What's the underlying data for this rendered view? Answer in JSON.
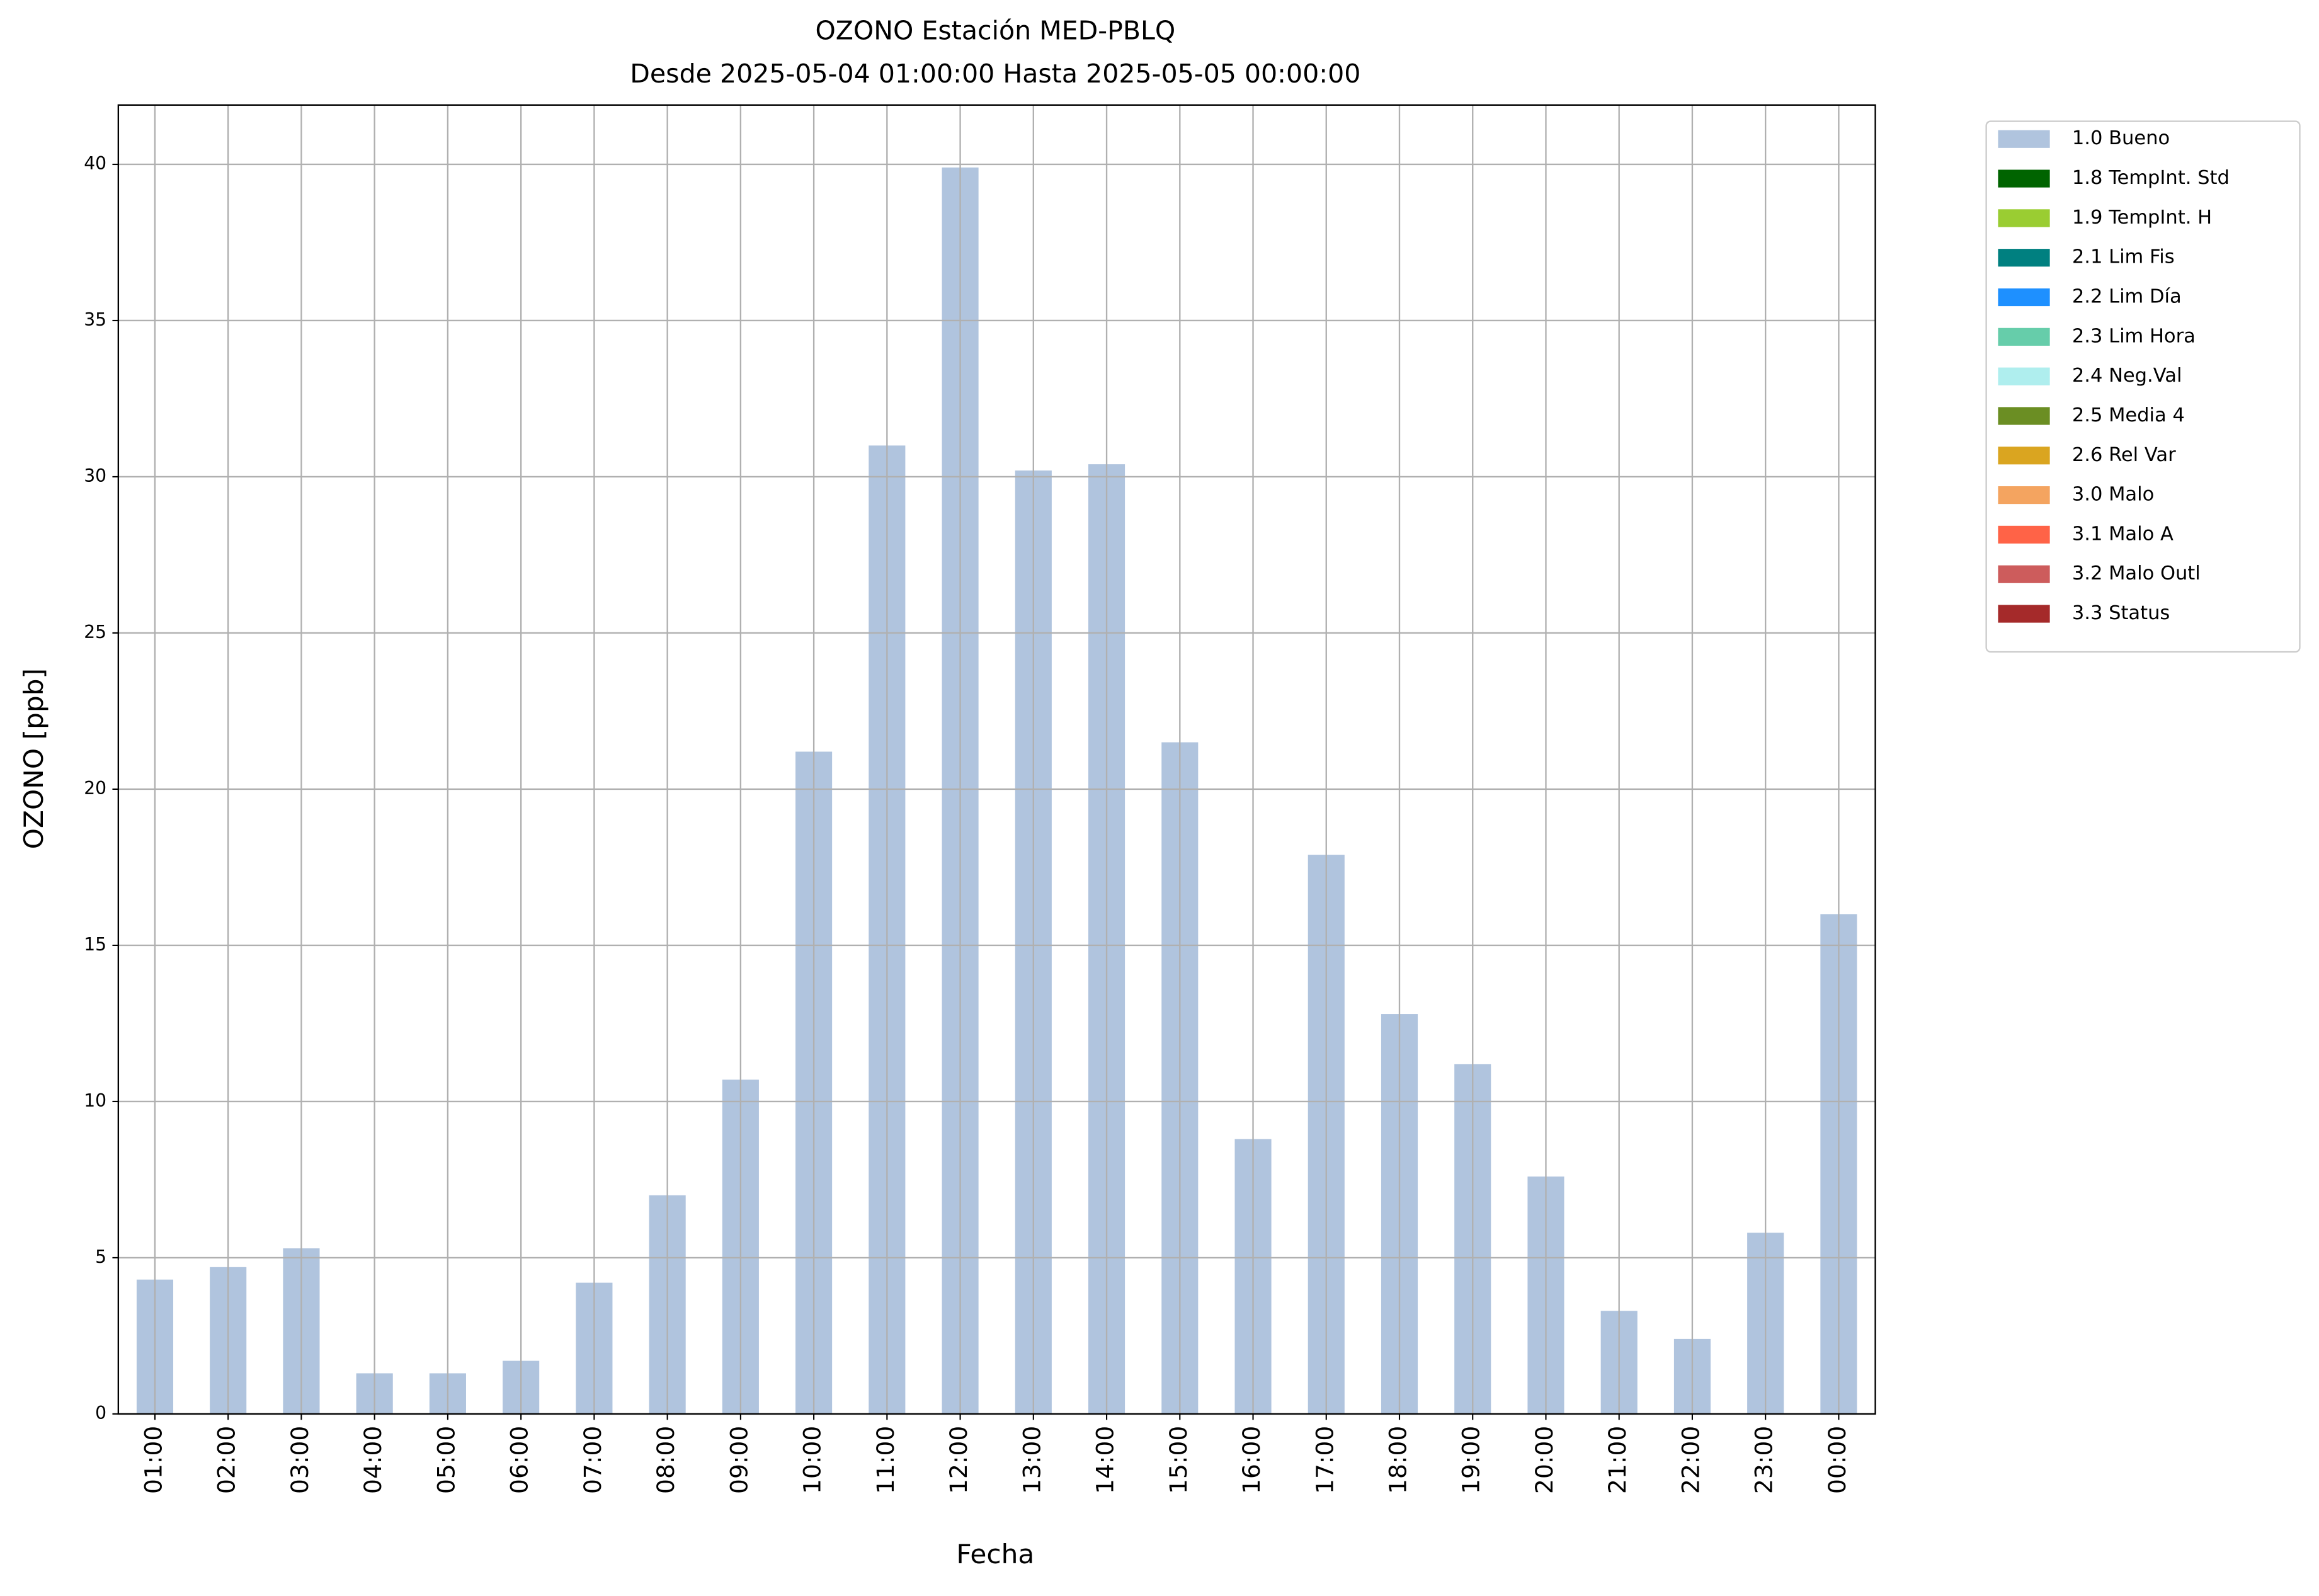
{
  "chart_data": {
    "type": "bar",
    "title": "OZONO Estación MED-PBLQ",
    "subtitle": "Desde 2025-05-04 01:00:00 Hasta 2025-05-05 00:00:00",
    "x_label": "Fecha",
    "y_label": "OZONO [ppb]",
    "categories": [
      "01:00",
      "02:00",
      "03:00",
      "04:00",
      "05:00",
      "06:00",
      "07:00",
      "08:00",
      "09:00",
      "10:00",
      "11:00",
      "12:00",
      "13:00",
      "14:00",
      "15:00",
      "16:00",
      "17:00",
      "18:00",
      "19:00",
      "20:00",
      "21:00",
      "22:00",
      "23:00",
      "00:00"
    ],
    "series": [
      {
        "name": "1.0 Bueno",
        "color": "#b0c4de",
        "values": [
          4.3,
          4.7,
          5.3,
          1.3,
          1.3,
          1.7,
          4.2,
          7.0,
          10.7,
          21.2,
          31.0,
          39.9,
          30.2,
          30.4,
          21.5,
          8.8,
          17.9,
          12.8,
          11.2,
          7.6,
          3.3,
          2.4,
          5.8,
          16.0
        ]
      }
    ],
    "legend_only": [
      {
        "name": "1.8 TempInt. Std",
        "color": "#006400"
      },
      {
        "name": "1.9 TempInt. H",
        "color": "#9acd32"
      },
      {
        "name": "2.1 Lim Fis",
        "color": "#008080"
      },
      {
        "name": "2.2 Lim Día",
        "color": "#1e90ff"
      },
      {
        "name": "2.3 Lim Hora",
        "color": "#66cdaa"
      },
      {
        "name": "2.4 Neg.Val",
        "color": "#afeeee"
      },
      {
        "name": "2.5 Media 4",
        "color": "#6b8e23"
      },
      {
        "name": "2.6 Rel Var",
        "color": "#daa520"
      },
      {
        "name": "3.0 Malo",
        "color": "#f4a460"
      },
      {
        "name": "3.1 Malo A",
        "color": "#ff6347"
      },
      {
        "name": "3.2 Malo Outl",
        "color": "#cd5c5c"
      },
      {
        "name": "3.3 Status",
        "color": "#a52a2a"
      }
    ],
    "ylim": [
      0,
      41.9
    ],
    "yticks": [
      0,
      5,
      10,
      15,
      20,
      25,
      30,
      35,
      40
    ],
    "grid": true,
    "legend_position": "outside-upper-right"
  }
}
